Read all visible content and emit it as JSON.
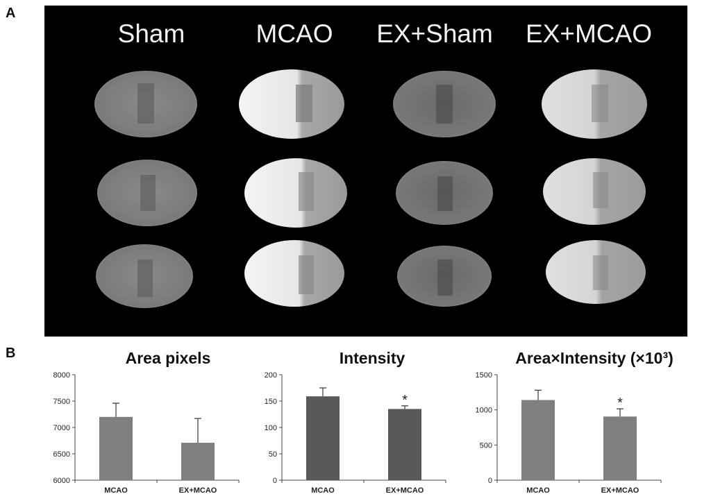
{
  "panel_a": {
    "letter": "A",
    "columns": [
      "Sham",
      "MCAO",
      "EX+Sham",
      "EX+MCAO"
    ]
  },
  "panel_b": {
    "letter": "B"
  },
  "chart_data": [
    {
      "type": "bar",
      "title": "Area pixels",
      "categories": [
        "MCAO",
        "EX+MCAO"
      ],
      "values": [
        7200,
        6710
      ],
      "error": [
        260,
        460
      ],
      "ylim": [
        6000,
        8000
      ],
      "yticks": [
        6000,
        6500,
        7000,
        7500,
        8000
      ],
      "significance": [
        "",
        ""
      ],
      "bar_color": "#7f7f7f"
    },
    {
      "type": "bar",
      "title": "Intensity",
      "categories": [
        "MCAO",
        "EX+MCAO"
      ],
      "values": [
        159,
        135
      ],
      "error": [
        16,
        6
      ],
      "ylim": [
        0,
        200
      ],
      "yticks": [
        0,
        50,
        100,
        150,
        200
      ],
      "significance": [
        "",
        "*"
      ],
      "bar_color": "#595959"
    },
    {
      "type": "bar",
      "title": "Area×Intensity (×10³)",
      "categories": [
        "MCAO",
        "EX+MCAO"
      ],
      "values": [
        1140,
        905
      ],
      "error": [
        140,
        110
      ],
      "ylim": [
        0,
        1500
      ],
      "yticks": [
        0,
        500,
        1000,
        1500
      ],
      "significance": [
        "",
        "*"
      ],
      "bar_color": "#7f7f7f"
    }
  ]
}
